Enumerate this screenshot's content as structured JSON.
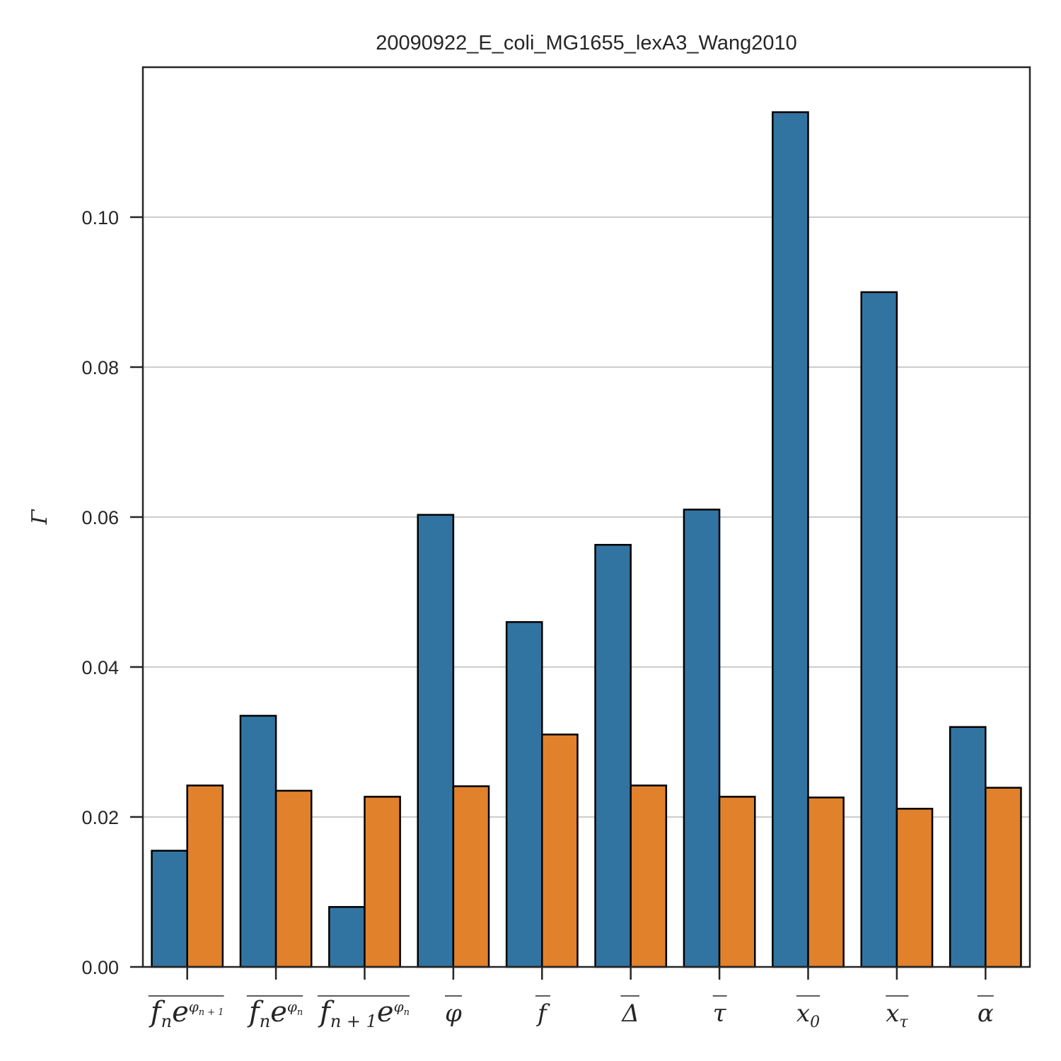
{
  "chart_data": {
    "type": "bar",
    "title": "20090922_E_coli_MG1655_lexA3_Wang2010",
    "ylabel": "Γ",
    "xlabel": "",
    "ylim": [
      0,
      0.12
    ],
    "yticks": [
      "0.00",
      "0.02",
      "0.04",
      "0.06",
      "0.08",
      "0.10"
    ],
    "grid": "horizontal",
    "categories": [
      "fn e^φn+1",
      "fn e^φn",
      "fn+1 e^φn",
      "φ",
      "f",
      "Δ",
      "τ",
      "x0",
      "xτ",
      "α"
    ],
    "series": [
      {
        "color": "#3274a1",
        "values": [
          0.0155,
          0.0335,
          0.008,
          0.0603,
          0.046,
          0.0563,
          0.061,
          0.114,
          0.09,
          0.032
        ]
      },
      {
        "color": "#e1812c",
        "values": [
          0.0242,
          0.0235,
          0.0227,
          0.0241,
          0.031,
          0.0242,
          0.0227,
          0.0226,
          0.0211,
          0.0239
        ]
      }
    ]
  }
}
